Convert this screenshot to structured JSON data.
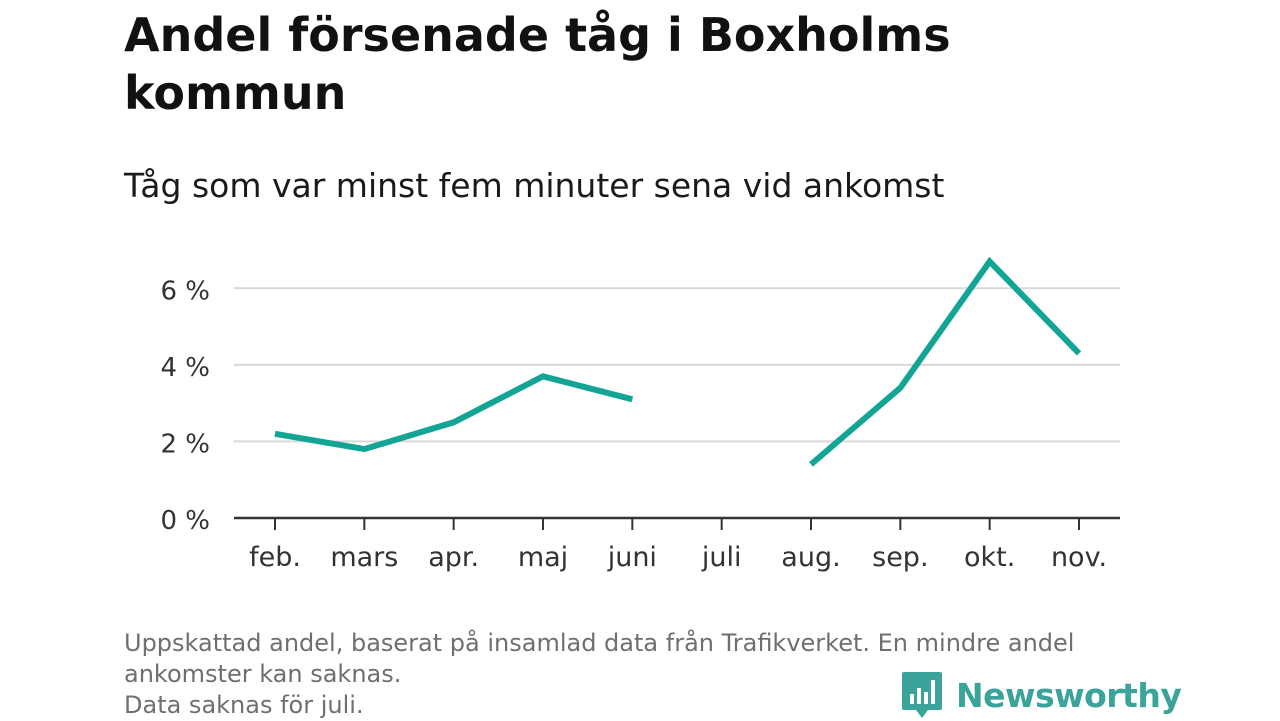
{
  "title": "Andel försenade tåg i Boxholms kommun",
  "subtitle": "Tåg som var minst fem minuter sena vid ankomst",
  "footnote": [
    "Uppskattad andel, baserat på insamlad data från Trafikverket. En mindre andel",
    "ankomster kan saknas.",
    "Data saknas för juli."
  ],
  "brand": {
    "name": "Newsworthy"
  },
  "colors": {
    "line": "#12a595",
    "grid": "#d9d9d9",
    "axis": "#333333",
    "brand": "#3aa39a"
  },
  "chart_data": {
    "type": "line",
    "categories": [
      "feb.",
      "mars",
      "apr.",
      "maj",
      "juni",
      "juli",
      "aug.",
      "sep.",
      "okt.",
      "nov."
    ],
    "series": [
      {
        "values": [
          2.2,
          1.8,
          2.5,
          3.7,
          3.1,
          null,
          1.4,
          3.4,
          6.7,
          4.3
        ]
      }
    ],
    "yticks": [
      "0 %",
      "2 %",
      "4 %",
      "6 %"
    ],
    "ytick_values": [
      0,
      2,
      4,
      6
    ],
    "ylim": [
      0,
      7
    ],
    "grid": true,
    "xlabel": "",
    "ylabel": ""
  }
}
